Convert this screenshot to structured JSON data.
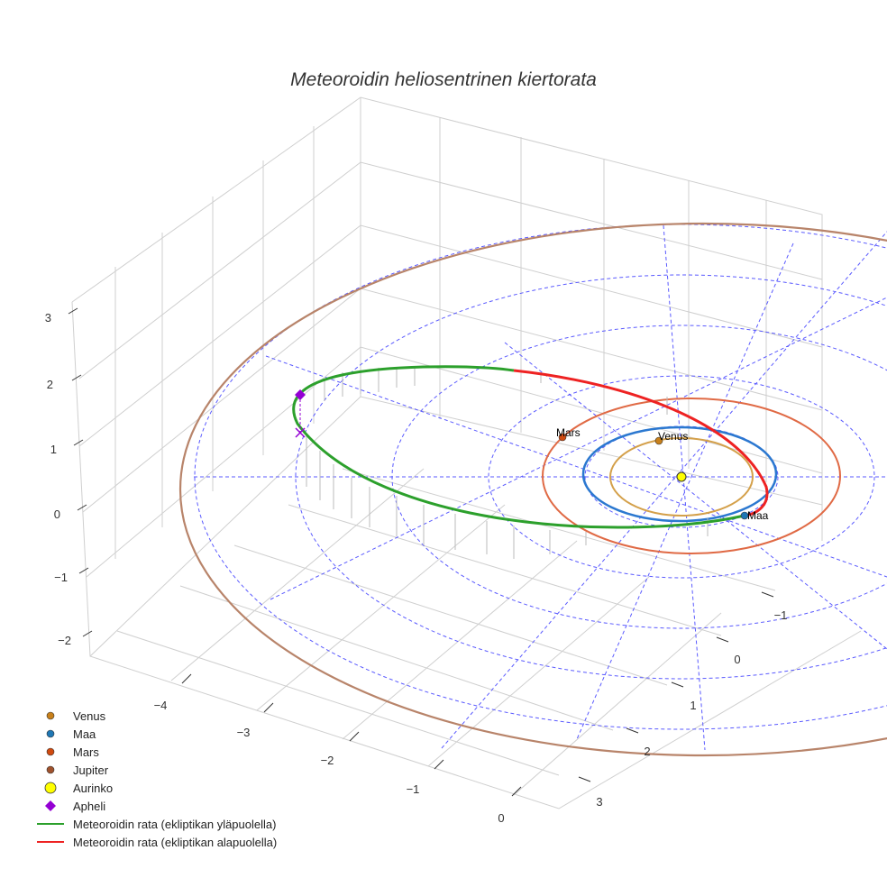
{
  "chart_data": {
    "type": "scatter3d",
    "title": "Meteoroidin heliosentrinen kiertorata",
    "axes": {
      "x": {
        "ticks": [
          "−4",
          "−3",
          "−2",
          "−1",
          "0"
        ]
      },
      "y": {
        "ticks": [
          "−1",
          "0",
          "1",
          "2",
          "3"
        ]
      },
      "z": {
        "ticks": [
          "3",
          "2",
          "1",
          "0",
          "−1",
          "−2"
        ]
      }
    },
    "orbits": [
      {
        "name": "Venus",
        "radius_au": 0.72,
        "color": "#d4a04a"
      },
      {
        "name": "Maa",
        "radius_au": 1.0,
        "color": "#2b78d0"
      },
      {
        "name": "Mars",
        "radius_au": 1.52,
        "color": "#e06a45"
      },
      {
        "name": "Jupiter",
        "radius_au": 5.2,
        "color": "#b8846a"
      }
    ],
    "reference_rings_au": [
      1,
      2,
      3,
      4,
      5
    ],
    "point_labels": {
      "mars": "Mars",
      "venus": "Venus",
      "maa": "Maa"
    },
    "legend": [
      {
        "label": "Venus",
        "symbol": "circle",
        "color": "#c8801a"
      },
      {
        "label": "Maa",
        "symbol": "circle",
        "color": "#1f77b4"
      },
      {
        "label": "Mars",
        "symbol": "circle",
        "color": "#d04a10"
      },
      {
        "label": "Jupiter",
        "symbol": "circle",
        "color": "#a0522d"
      },
      {
        "label": "Aurinko",
        "symbol": "circle-large",
        "color": "#ffff00"
      },
      {
        "label": "Apheli",
        "symbol": "diamond",
        "color": "#9400d3"
      },
      {
        "label": "Meteoroidin rata (ekliptikan yläpuolella)",
        "symbol": "line",
        "color": "#2ca02c"
      },
      {
        "label": "Meteoroidin rata (ekliptikan alapuolella)",
        "symbol": "line",
        "color": "#ee2222"
      }
    ],
    "legend_position": "bottom-left"
  }
}
